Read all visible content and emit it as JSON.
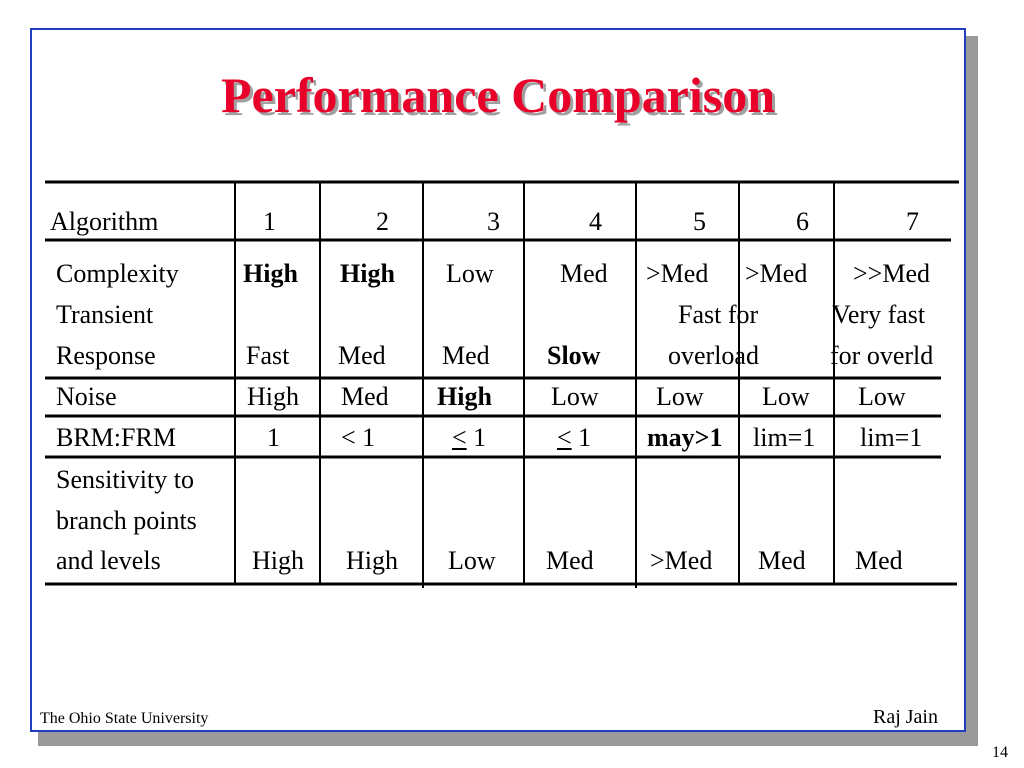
{
  "title": "Performance Comparison",
  "table": {
    "header_label": "Algorithm",
    "columns": [
      "1",
      "2",
      "3",
      "4",
      "5",
      "6",
      "7"
    ],
    "rows": [
      {
        "label": [
          "Complexity"
        ],
        "cells": [
          "High",
          "High",
          "Low",
          "Med",
          ">Med",
          ">Med",
          ">>Med"
        ]
      },
      {
        "label": [
          "Transient",
          "Response"
        ],
        "cells": [
          "Fast",
          "Med",
          "Med",
          "Slow",
          "Fast for|overload",
          "",
          "Very fast|for overld"
        ]
      },
      {
        "label": [
          "Noise"
        ],
        "cells": [
          "High",
          "Med",
          "High",
          "Low",
          "Low",
          "Low",
          "Low"
        ]
      },
      {
        "label": [
          "BRM:FRM"
        ],
        "cells": [
          "1",
          "< 1",
          "< 1",
          "< 1",
          "may>1",
          "lim=1",
          "lim=1"
        ]
      },
      {
        "label": [
          "Sensitivity to",
          "branch points",
          "and levels"
        ],
        "cells": [
          "High",
          "High",
          "Low",
          "Med",
          ">Med",
          "Med",
          "Med"
        ]
      }
    ]
  },
  "footer": {
    "left": "The Ohio State University",
    "right": "Raj Jain",
    "page": "14"
  }
}
